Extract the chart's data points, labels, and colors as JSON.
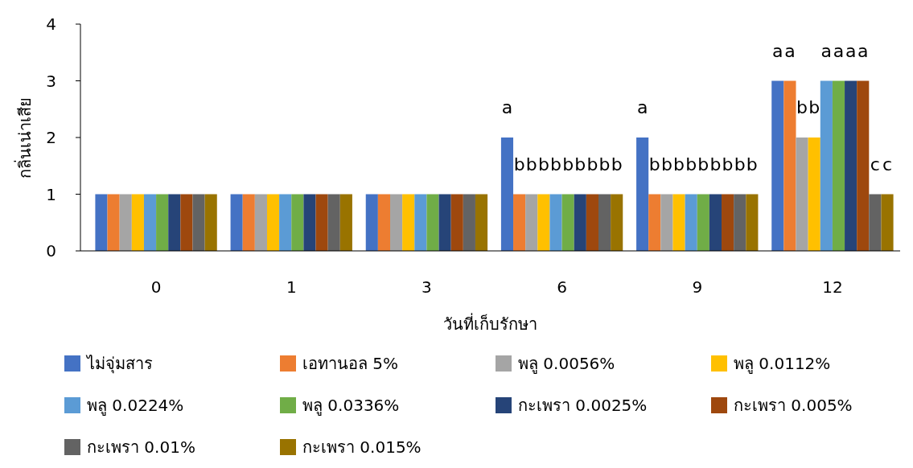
{
  "chart_data": {
    "type": "bar",
    "xlabel": "วันที่เก็บรักษา",
    "ylabel": "กลิ่นเน่าเสีย",
    "categories": [
      "0",
      "1",
      "3",
      "6",
      "9",
      "12"
    ],
    "ylim": [
      0,
      4
    ],
    "yticks": [
      0,
      1,
      2,
      3,
      4
    ],
    "grid": false,
    "legend": "bottom",
    "series": [
      {
        "name": "ไม่จุ่มสาร",
        "color": "#4472c4",
        "values": [
          1,
          1,
          1,
          2,
          2,
          3
        ],
        "value_labels": [
          null,
          null,
          null,
          "a",
          "a",
          "a"
        ]
      },
      {
        "name": "เอทานอล 5%",
        "color": "#ed7d31",
        "values": [
          1,
          1,
          1,
          1,
          1,
          3
        ],
        "value_labels": [
          null,
          null,
          null,
          "b",
          "b",
          "a"
        ]
      },
      {
        "name": "พลู 0.0056%",
        "color": "#a5a5a5",
        "values": [
          1,
          1,
          1,
          1,
          1,
          2
        ],
        "value_labels": [
          null,
          null,
          null,
          "b",
          "b",
          "b"
        ]
      },
      {
        "name": "พลู 0.0112%",
        "color": "#ffc000",
        "values": [
          1,
          1,
          1,
          1,
          1,
          2
        ],
        "value_labels": [
          null,
          null,
          null,
          "b",
          "b",
          "b"
        ]
      },
      {
        "name": "พลู 0.0224%",
        "color": "#5b9bd5",
        "values": [
          1,
          1,
          1,
          1,
          1,
          3
        ],
        "value_labels": [
          null,
          null,
          null,
          "b",
          "b",
          "a"
        ]
      },
      {
        "name": "พลู 0.0336%",
        "color": "#70ad47",
        "values": [
          1,
          1,
          1,
          1,
          1,
          3
        ],
        "value_labels": [
          null,
          null,
          null,
          "b",
          "b",
          "a"
        ]
      },
      {
        "name": "กะเพรา 0.0025%",
        "color": "#264478",
        "values": [
          1,
          1,
          1,
          1,
          1,
          3
        ],
        "value_labels": [
          null,
          null,
          null,
          "b",
          "b",
          "a"
        ]
      },
      {
        "name": "กะเพรา 0.005%",
        "color": "#9e480e",
        "values": [
          1,
          1,
          1,
          1,
          1,
          3
        ],
        "value_labels": [
          null,
          null,
          null,
          "b",
          "b",
          "a"
        ]
      },
      {
        "name": "กะเพรา 0.01%",
        "color": "#636363",
        "values": [
          1,
          1,
          1,
          1,
          1,
          1
        ],
        "value_labels": [
          null,
          null,
          null,
          "b",
          "b",
          "c"
        ]
      },
      {
        "name": "กะเพรา 0.015%",
        "color": "#997300",
        "values": [
          1,
          1,
          1,
          1,
          1,
          1
        ],
        "value_labels": [
          null,
          null,
          null,
          "b",
          "b",
          "c"
        ]
      }
    ]
  }
}
